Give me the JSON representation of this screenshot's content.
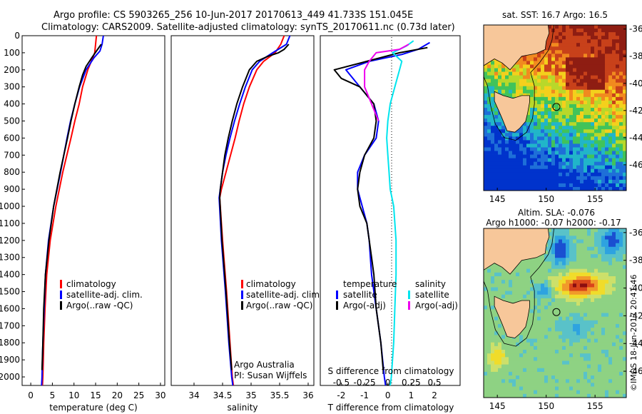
{
  "header": {
    "line1": "Argo profile: CS 5903265_256 10-Jun-2017 20170613_449 41.733S 151.045E",
    "line2": "Climatology: CARS2009. Satellite-adjusted climatology: synTS_20170611.nc (0.73d later)"
  },
  "depth_ticks": [
    "0",
    "100",
    "200",
    "300",
    "400",
    "500",
    "600",
    "700",
    "800",
    "900",
    "1000",
    "1100",
    "1200",
    "1300",
    "1400",
    "1500",
    "1600",
    "1700",
    "1800",
    "1900",
    "2000"
  ],
  "colors": {
    "climatology": "#ff0000",
    "satellite": "#0000ff",
    "argo": "#000000",
    "s_satellite": "#00e5ee",
    "s_argo": "#ee00ee"
  },
  "chart_data": [
    {
      "type": "line",
      "xlabel": "temperature (deg C)",
      "xlim": [
        -2,
        31
      ],
      "xticks": [
        "0",
        "5",
        "10",
        "15",
        "20",
        "25",
        "30"
      ],
      "ylim": [
        2050,
        0
      ],
      "legend": [
        "climatology",
        "satellite-adj. clim.",
        "Argo(..raw -QC)"
      ],
      "series": [
        {
          "name": "climatology",
          "y": [
            0,
            50,
            100,
            150,
            200,
            300,
            400,
            500,
            600,
            800,
            1000,
            1200,
            1400,
            1600,
            1800,
            2000,
            2050
          ],
          "x": [
            15.2,
            15.0,
            14.8,
            14.0,
            13.2,
            12.0,
            11.2,
            10.2,
            9.3,
            7.4,
            5.8,
            4.5,
            3.7,
            3.3,
            3.0,
            2.8,
            2.7
          ]
        },
        {
          "name": "satellite-adj. clim.",
          "y": [
            0,
            50,
            90,
            130,
            200,
            300,
            400,
            500,
            600,
            800,
            1000,
            1200,
            1400,
            1600,
            1800,
            2000,
            2050
          ],
          "x": [
            16.8,
            16.5,
            16.0,
            14.6,
            12.8,
            11.3,
            10.2,
            9.2,
            8.4,
            6.9,
            5.3,
            4.1,
            3.4,
            3.1,
            2.8,
            2.6,
            2.5
          ]
        },
        {
          "name": "Argo(..raw -QC)",
          "y": [
            50,
            90,
            130,
            180,
            230,
            300,
            400,
            500,
            600,
            800,
            1000,
            1200,
            1400,
            1600,
            1800,
            1960
          ],
          "x": [
            16.3,
            15.2,
            14.1,
            12.8,
            12.0,
            11.2,
            10.2,
            9.3,
            8.5,
            6.8,
            5.3,
            4.2,
            3.4,
            3.0,
            2.8,
            2.6
          ]
        }
      ]
    },
    {
      "type": "line",
      "xlabel": "salinity",
      "xlim": [
        33.6,
        36.1
      ],
      "xticks": [
        "34",
        "34.5",
        "35",
        "35.5",
        "36"
      ],
      "ylim": [
        2050,
        0
      ],
      "legend": [
        "climatology",
        "satellite-adj. clim.",
        "Argo(..raw -QC)"
      ],
      "annotation": [
        "Argo Australia",
        "PI: Susan Wijffels"
      ],
      "series": [
        {
          "name": "climatology",
          "y": [
            0,
            50,
            100,
            150,
            200,
            300,
            400,
            500,
            600,
            700,
            800,
            900,
            950,
            1200,
            1500,
            1800,
            2000,
            2050
          ],
          "x": [
            35.58,
            35.52,
            35.42,
            35.22,
            35.1,
            34.97,
            34.87,
            34.79,
            34.72,
            34.64,
            34.56,
            34.48,
            34.45,
            34.5,
            34.57,
            34.63,
            34.67,
            34.69
          ]
        },
        {
          "name": "satellite-adj. clim.",
          "y": [
            0,
            50,
            100,
            150,
            200,
            300,
            400,
            500,
            600,
            700,
            800,
            900,
            950,
            1200,
            1500,
            1800,
            2000,
            2050
          ],
          "x": [
            35.68,
            35.62,
            35.38,
            35.15,
            35.02,
            34.9,
            34.8,
            34.71,
            34.63,
            34.56,
            34.5,
            34.46,
            34.44,
            34.48,
            34.55,
            34.61,
            34.66,
            34.68
          ]
        },
        {
          "name": "Argo(..raw -QC)",
          "y": [
            50,
            80,
            100,
            120,
            150,
            200,
            300,
            400,
            500,
            600,
            700,
            800,
            900,
            950,
            1200,
            1500,
            1800,
            1960
          ],
          "x": [
            35.66,
            35.58,
            35.48,
            35.3,
            35.1,
            34.97,
            34.85,
            34.75,
            34.67,
            34.6,
            34.54,
            34.5,
            34.46,
            34.45,
            34.49,
            34.56,
            34.62,
            34.66
          ]
        }
      ]
    },
    {
      "type": "line",
      "xlabel": "T difference from climatology",
      "xlabel_top": "S difference from climatology",
      "xlim": [
        -2.9,
        3.1
      ],
      "xticks": [
        "-2",
        "-1",
        "0",
        "1",
        "2"
      ],
      "sticks": [
        "-0.5",
        "-0.25",
        "0",
        "0.25",
        "0.5"
      ],
      "ylim": [
        2050,
        0
      ],
      "legend_left_title": "temperature",
      "legend_right_title": "salinity",
      "legend_left": [
        "satellite",
        "Argo(-adj)"
      ],
      "legend_right": [
        "satellite",
        "Argo(-adj)"
      ],
      "series": [
        {
          "name": "temperature satellite",
          "y": [
            40,
            80,
            110,
            150,
            200,
            300,
            400,
            500,
            600,
            700,
            800,
            900,
            1000,
            1100,
            1200,
            1300,
            1400,
            1600,
            1800,
            2000,
            2050
          ],
          "x": [
            1.8,
            1.3,
            0.6,
            -0.8,
            -1.8,
            -1.2,
            -0.6,
            -0.4,
            -0.5,
            -1.0,
            -1.3,
            -1.3,
            -1.1,
            -0.9,
            -0.8,
            -0.75,
            -0.7,
            -0.5,
            -0.3,
            -0.15,
            -0.1
          ]
        },
        {
          "name": "temperature Argo(-adj)",
          "y": [
            70,
            100,
            150,
            200,
            250,
            300,
            400,
            500,
            600,
            700,
            800,
            900,
            1000,
            1100,
            1200,
            1300,
            1400,
            1600,
            1800,
            1960
          ],
          "x": [
            1.7,
            0.5,
            -0.9,
            -2.3,
            -2.0,
            -1.2,
            -0.6,
            -0.5,
            -0.6,
            -1.0,
            -1.2,
            -1.3,
            -1.2,
            -0.9,
            -0.8,
            -0.7,
            -0.6,
            -0.5,
            -0.3,
            -0.2
          ]
        },
        {
          "name": "salinity satellite",
          "y": [
            30,
            60,
            100,
            150,
            200,
            300,
            400,
            500,
            600,
            700,
            800,
            900,
            1000,
            1200,
            1400,
            1600,
            1800,
            2000,
            2050
          ],
          "x": [
            1.1,
            0.8,
            0.2,
            0.6,
            0.5,
            0.3,
            0.1,
            0.0,
            -0.05,
            0.0,
            0.05,
            0.1,
            0.25,
            0.35,
            0.35,
            0.3,
            0.25,
            0.15,
            0.1
          ]
        },
        {
          "name": "salinity Argo(-adj)",
          "y": [
            50,
            80,
            100,
            150,
            200,
            300,
            400,
            500
          ],
          "x": [
            0.9,
            0.5,
            -0.5,
            -0.8,
            -1.0,
            -1.0,
            -0.7,
            -0.4
          ]
        }
      ]
    }
  ],
  "maps": {
    "sst_title": "sat. SST: 16.7 Argo: 16.5",
    "sla_title": "Altim. SLA: -0.076",
    "sla_subtitle": "Argo h1000: -0.07 h2000: -0.17",
    "lat_ticks": [
      "-36",
      "-38",
      "-40",
      "-42",
      "-44",
      "-46"
    ],
    "lon_ticks": [
      "145",
      "150",
      "155"
    ],
    "float_lon": 151.045,
    "float_lat": -41.733
  },
  "credit": "©IMOS 18-Jun-2017 20:41:46"
}
